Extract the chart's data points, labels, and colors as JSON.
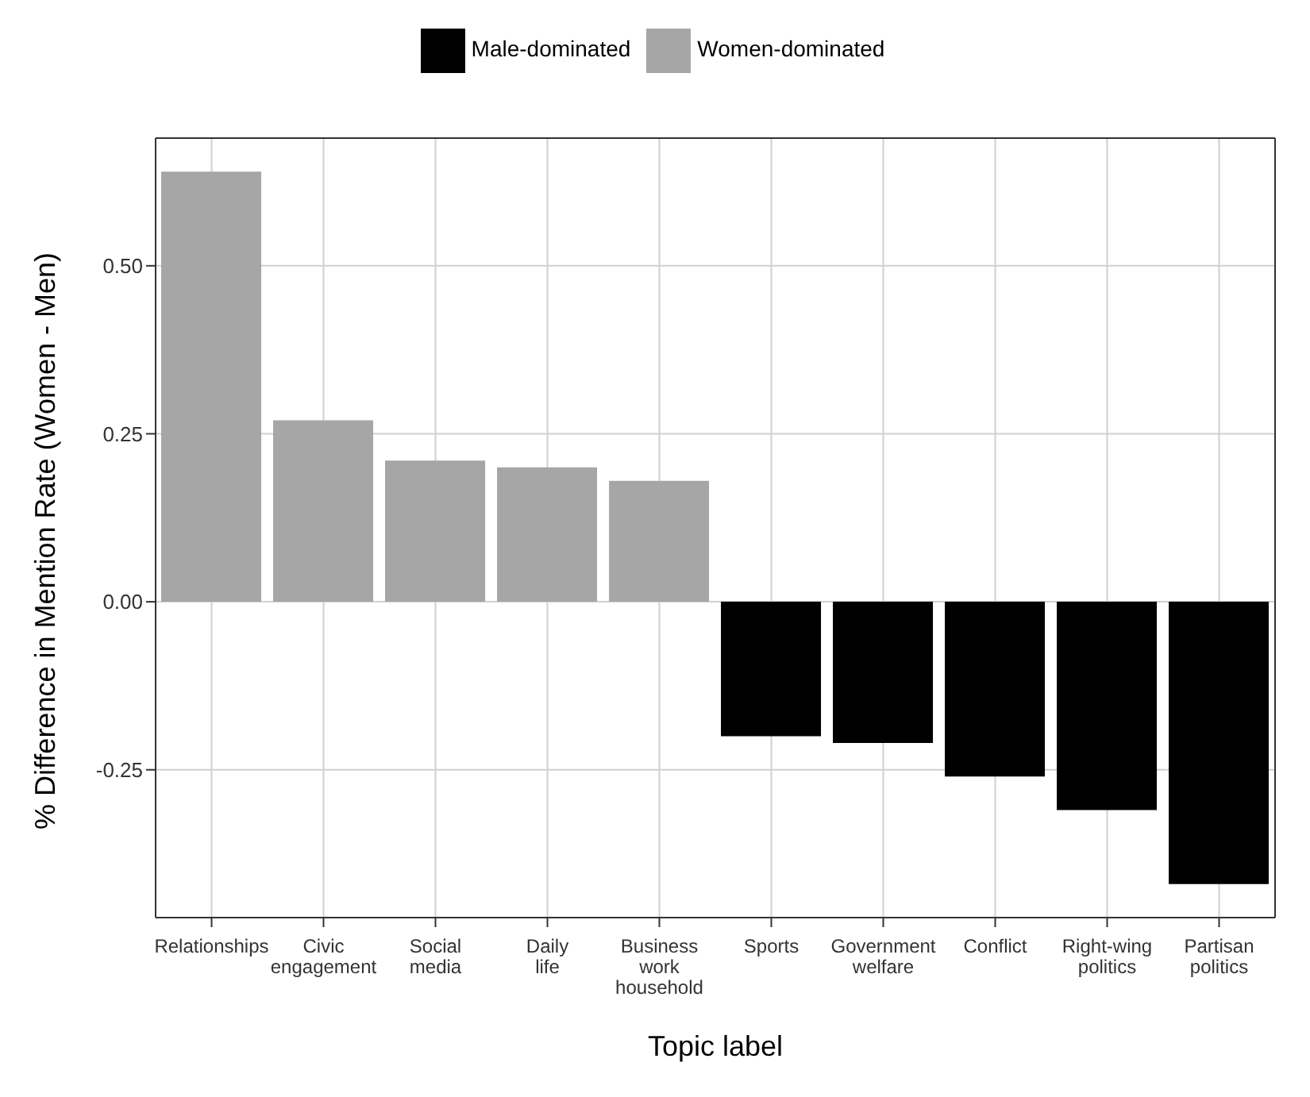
{
  "chart_data": {
    "type": "bar",
    "xlabel": "Topic label",
    "ylabel": "% Difference in Mention Rate (Women - Men)",
    "categories": [
      "Relationships",
      "Civic\nengagement",
      "Social\nmedia",
      "Daily\nlife",
      "Business\nwork\nhousehold",
      "Sports",
      "Government\nwelfare",
      "Conflict",
      "Right-wing\npolitics",
      "Partisan\npolitics"
    ],
    "series": [
      {
        "name": "Male-dominated",
        "color": "#000000",
        "values": [
          null,
          null,
          null,
          null,
          null,
          -0.2,
          -0.21,
          -0.26,
          -0.31,
          -0.42
        ]
      },
      {
        "name": "Women-dominated",
        "color": "#a6a6a6",
        "values": [
          0.64,
          0.27,
          0.21,
          0.2,
          0.18,
          null,
          null,
          null,
          null,
          null
        ]
      }
    ],
    "stacked": true,
    "ylim": [
      -0.47,
      0.69
    ],
    "yticks": [
      {
        "value": -0.25,
        "label": "-0.25"
      },
      {
        "value": 0,
        "label": "0.00"
      },
      {
        "value": 0.25,
        "label": "0.25"
      },
      {
        "value": 0.5,
        "label": "0.50"
      }
    ],
    "grid": true,
    "legend": "top"
  }
}
